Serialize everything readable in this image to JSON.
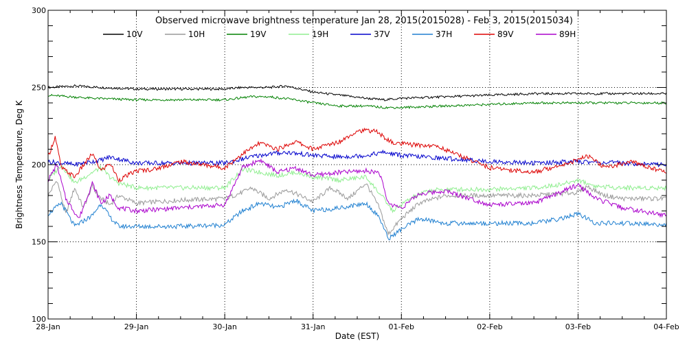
{
  "chart_data": {
    "type": "line",
    "title": "Observed microwave brightness temperature Jan 28, 2015(2015028) - Feb  3, 2015(2015034)",
    "xlabel": "Date (EST)",
    "ylabel": "Brightness Temperature, Deg K",
    "xlim": [
      "28-Jan",
      "04-Feb"
    ],
    "ylim": [
      100,
      300
    ],
    "x_ticks": [
      "28-Jan",
      "29-Jan",
      "30-Jan",
      "31-Jan",
      "01-Feb",
      "02-Feb",
      "03-Feb",
      "04-Feb"
    ],
    "y_ticks": [
      100,
      150,
      200,
      250,
      300
    ],
    "grid": "dotted",
    "legend_position": "top",
    "x_unit_note": "x values are days after 28-Jan 00:00 EST",
    "series": [
      {
        "name": "10V",
        "color": "#000000",
        "x": [
          0,
          0.3,
          0.6,
          1,
          1.5,
          2,
          2.2,
          2.5,
          2.7,
          3,
          3.3,
          3.6,
          3.8,
          4,
          4.5,
          5,
          5.5,
          6,
          6.5,
          7
        ],
        "y": [
          250,
          251,
          250,
          249,
          249,
          249,
          250,
          250,
          251,
          247,
          245,
          243,
          242,
          243,
          244,
          245,
          246,
          246,
          246,
          246
        ]
      },
      {
        "name": "10H",
        "color": "#999999",
        "x": [
          0,
          0.1,
          0.2,
          0.3,
          0.4,
          0.5,
          0.6,
          0.7,
          0.8,
          1,
          1.5,
          2,
          2.2,
          2.3,
          2.5,
          2.7,
          3,
          3.2,
          3.4,
          3.6,
          3.75,
          3.85,
          4,
          4.2,
          4.5,
          5,
          5.5,
          6,
          6.1,
          6.3,
          6.5,
          7
        ],
        "y": [
          180,
          190,
          168,
          185,
          172,
          186,
          178,
          174,
          180,
          175,
          177,
          178,
          182,
          185,
          178,
          184,
          176,
          185,
          178,
          188,
          172,
          155,
          165,
          175,
          180,
          180,
          180,
          182,
          186,
          180,
          178,
          178
        ]
      },
      {
        "name": "19V",
        "color": "#008000",
        "x": [
          0,
          0.5,
          1,
          1.5,
          2,
          2.3,
          2.5,
          2.8,
          3,
          3.3,
          3.6,
          3.8,
          4,
          4.5,
          5,
          5.5,
          6,
          6.5,
          7
        ],
        "y": [
          245,
          243,
          242,
          242,
          242,
          244,
          244,
          242,
          240,
          238,
          238,
          237,
          237,
          238,
          239,
          240,
          240,
          240,
          240
        ]
      },
      {
        "name": "19H",
        "color": "#90EE90",
        "x": [
          0,
          0.15,
          0.3,
          0.5,
          0.6,
          0.7,
          0.8,
          1,
          1.5,
          2,
          2.2,
          2.4,
          2.6,
          2.8,
          3,
          3.3,
          3.6,
          3.8,
          3.9,
          4.1,
          4.3,
          4.5,
          5,
          5.5,
          5.8,
          6,
          6.2,
          6.5,
          7
        ],
        "y": [
          190,
          200,
          188,
          195,
          198,
          192,
          188,
          185,
          185,
          185,
          197,
          195,
          193,
          195,
          192,
          190,
          192,
          178,
          170,
          178,
          183,
          184,
          184,
          185,
          187,
          190,
          186,
          185,
          185
        ]
      },
      {
        "name": "37V",
        "color": "#0000CC",
        "x": [
          0,
          0.3,
          0.6,
          0.7,
          1,
          1.5,
          2,
          2.3,
          2.5,
          2.7,
          3,
          3.3,
          3.6,
          3.8,
          4,
          4.5,
          5,
          5.5,
          6,
          6.5,
          7
        ],
        "y": [
          202,
          200,
          203,
          205,
          201,
          201,
          201,
          205,
          207,
          208,
          206,
          205,
          206,
          208,
          206,
          204,
          202,
          201,
          202,
          201,
          200
        ]
      },
      {
        "name": "37H",
        "color": "#1E7FD0",
        "x": [
          0,
          0.15,
          0.3,
          0.5,
          0.6,
          0.7,
          0.8,
          1,
          1.5,
          2,
          2.2,
          2.4,
          2.6,
          2.8,
          3,
          3.3,
          3.6,
          3.75,
          3.85,
          4,
          4.2,
          4.5,
          5,
          5.5,
          5.8,
          6,
          6.2,
          6.5,
          7
        ],
        "y": [
          168,
          175,
          160,
          167,
          175,
          166,
          160,
          160,
          160,
          161,
          170,
          175,
          172,
          177,
          170,
          172,
          175,
          166,
          152,
          158,
          165,
          162,
          162,
          162,
          165,
          168,
          162,
          162,
          161
        ]
      },
      {
        "name": "89V",
        "color": "#DD0000",
        "x": [
          0,
          0.08,
          0.15,
          0.3,
          0.5,
          0.6,
          0.7,
          0.8,
          1,
          1.2,
          1.5,
          2,
          2.2,
          2.4,
          2.6,
          2.8,
          3,
          3.3,
          3.5,
          3.7,
          3.9,
          4.1,
          4.4,
          4.7,
          5,
          5.5,
          6,
          6.1,
          6.3,
          6.6,
          7
        ],
        "y": [
          205,
          218,
          198,
          192,
          207,
          196,
          201,
          190,
          196,
          197,
          202,
          198,
          207,
          214,
          210,
          215,
          210,
          215,
          222,
          222,
          214,
          213,
          212,
          205,
          198,
          195,
          203,
          206,
          198,
          202,
          195
        ]
      },
      {
        "name": "89H",
        "color": "#AA00CC",
        "x": [
          0,
          0.1,
          0.2,
          0.35,
          0.5,
          0.6,
          0.7,
          0.8,
          1,
          1.5,
          2,
          2.2,
          2.4,
          2.6,
          2.8,
          3,
          3.3,
          3.6,
          3.75,
          3.85,
          4,
          4.2,
          4.5,
          5,
          5.5,
          5.8,
          6,
          6.2,
          6.5,
          7
        ],
        "y": [
          190,
          200,
          178,
          165,
          188,
          175,
          180,
          172,
          170,
          172,
          174,
          198,
          203,
          195,
          198,
          193,
          195,
          196,
          195,
          175,
          172,
          181,
          183,
          174,
          175,
          182,
          187,
          178,
          172,
          167
        ]
      }
    ]
  }
}
